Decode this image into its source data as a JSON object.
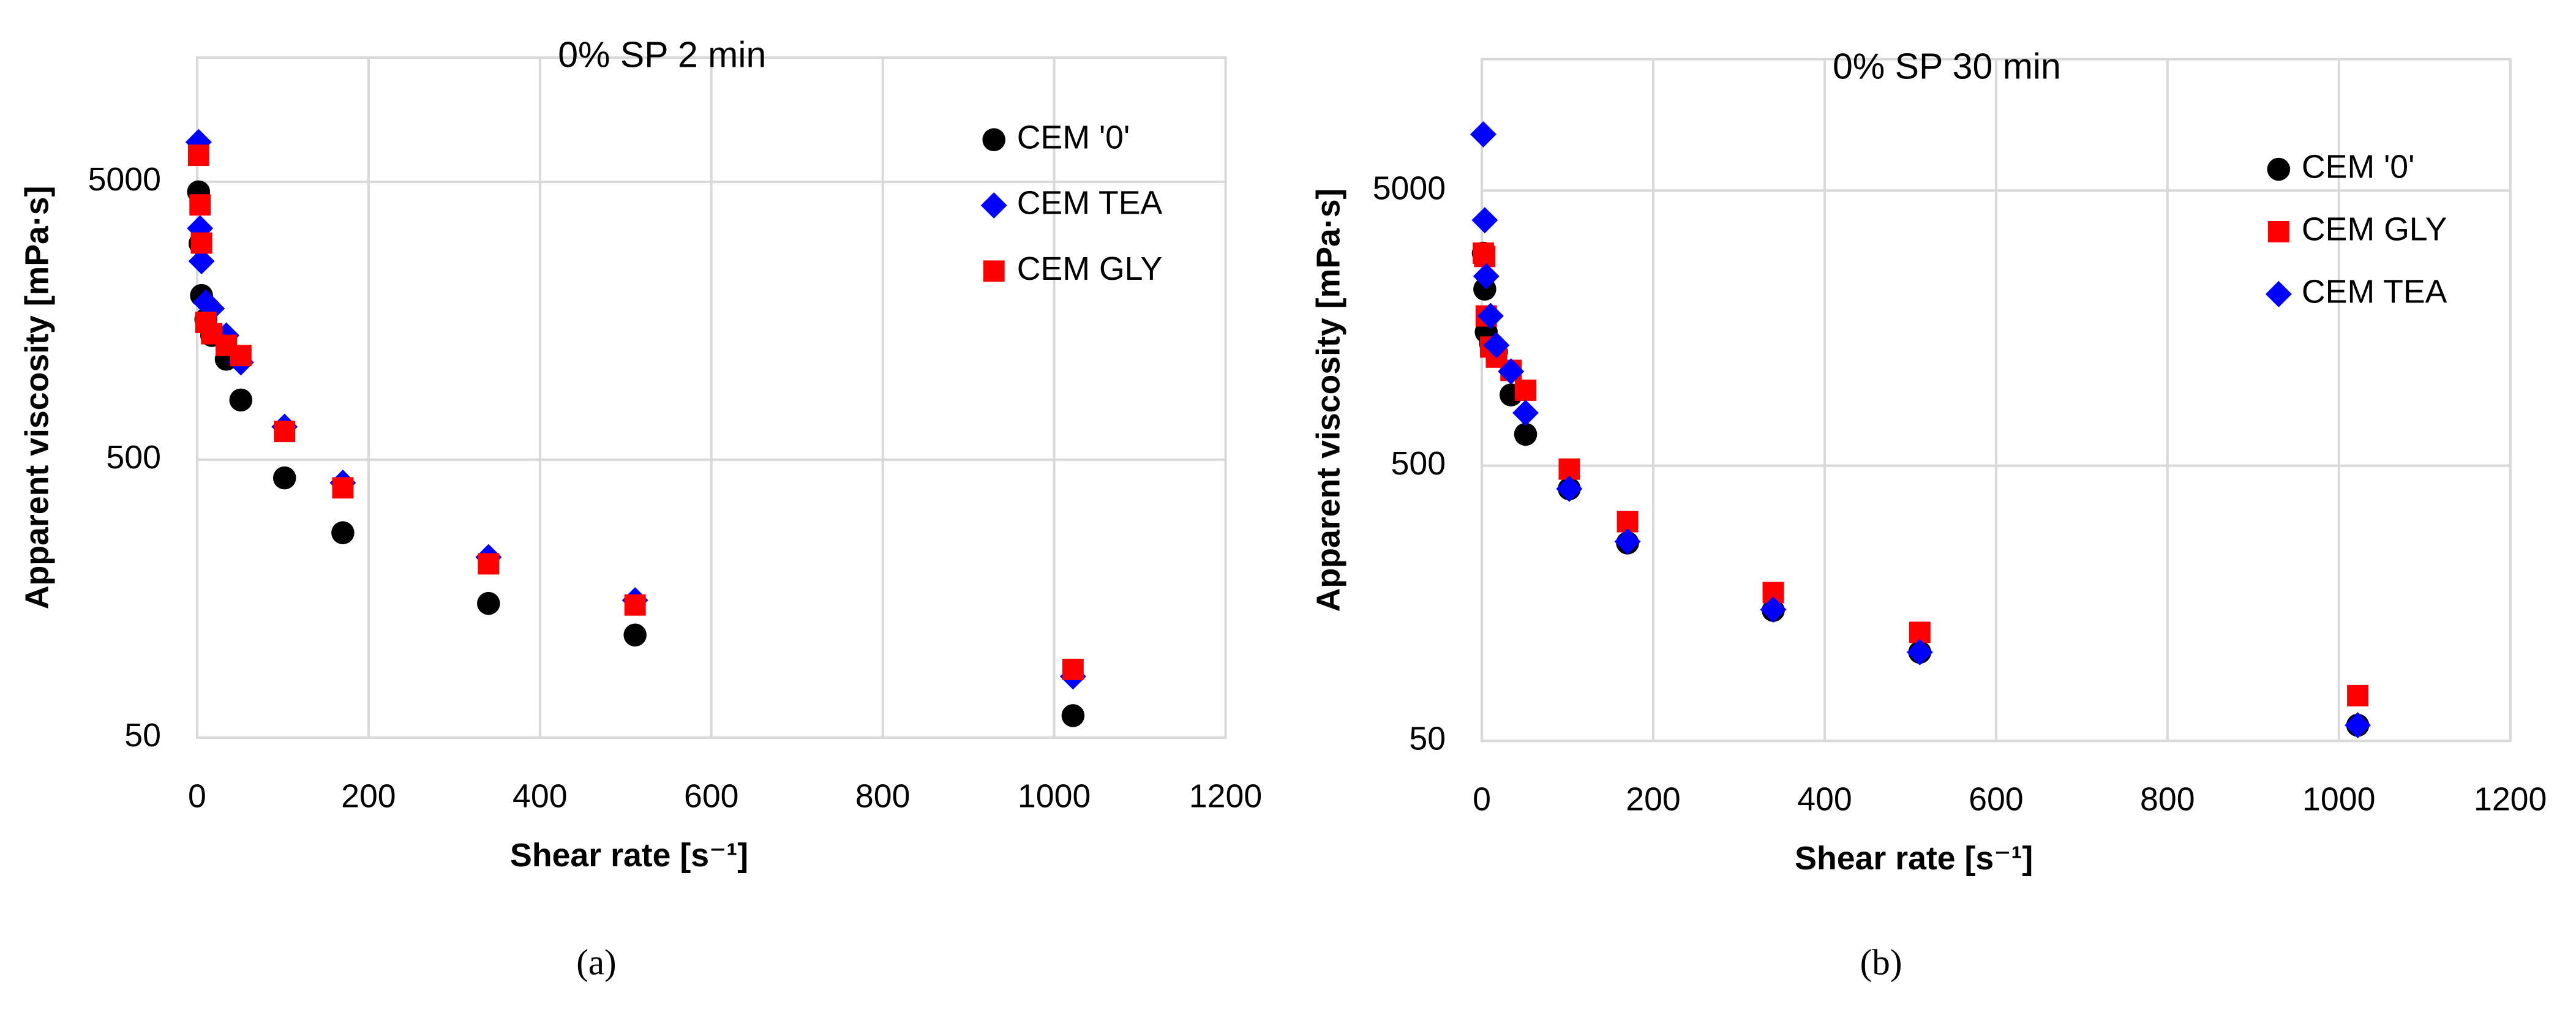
{
  "chart_data": [
    {
      "type": "scatter",
      "title": "0% SP 2 min",
      "caption": "(a)",
      "xlabel": "Shear rate [s⁻¹]",
      "ylabel": "Apparent viscosity [mPa·s]",
      "xlim": [
        0,
        1200
      ],
      "xticks": [
        0,
        200,
        400,
        600,
        800,
        1000,
        1200
      ],
      "ylim": [
        50,
        14000
      ],
      "yticks": [
        50,
        500,
        5000
      ],
      "log_y": true,
      "grid": true,
      "legend": "upper right",
      "series": [
        {
          "name": "CEM '0'",
          "color": "#000000",
          "marker": "circle",
          "x": [
            1.7,
            3.4,
            5.1,
            10.2,
            17,
            34,
            51,
            102,
            170,
            340,
            511,
            1022
          ],
          "values": [
            4600,
            3000,
            1950,
            1600,
            1400,
            1150,
            820,
            430,
            273,
            152,
            117,
            60
          ]
        },
        {
          "name": "CEM TEA",
          "color": "#0000ff",
          "marker": "diamond",
          "x": [
            1.7,
            3.4,
            5.1,
            10.2,
            17,
            34,
            51,
            102,
            170,
            340,
            511,
            1022
          ],
          "values": [
            6950,
            3400,
            2590,
            1840,
            1750,
            1400,
            1120,
            657,
            413,
            223,
            156,
            83
          ]
        },
        {
          "name": "CEM GLY",
          "color": "#ff0000",
          "marker": "square",
          "x": [
            1.7,
            3.4,
            5.1,
            10.2,
            17,
            34,
            51,
            102,
            170,
            340,
            511,
            1022
          ],
          "values": [
            6230,
            4130,
            3010,
            1560,
            1420,
            1290,
            1185,
            632,
            396,
            211,
            150,
            88
          ]
        }
      ]
    },
    {
      "type": "scatter",
      "title": "0% SP 30 min",
      "caption": "(b)",
      "xlabel": "Shear rate [s⁻¹]",
      "ylabel": "Apparent viscosity [mPa·s]",
      "xlim": [
        0,
        1200
      ],
      "xticks": [
        0,
        200,
        400,
        600,
        800,
        1000,
        1200
      ],
      "ylim": [
        50,
        15000
      ],
      "yticks": [
        50,
        500,
        5000
      ],
      "log_y": true,
      "grid": true,
      "legend": "upper right",
      "series": [
        {
          "name": "CEM '0'",
          "color": "#000000",
          "marker": "circle",
          "x": [
            1.7,
            3.4,
            5.1,
            10.2,
            17,
            34,
            51,
            102,
            170,
            340,
            511,
            1022
          ],
          "values": [
            2960,
            2190,
            1530,
            1390,
            1295,
            904,
            650,
            412,
            262,
            149,
            105,
            57
          ]
        },
        {
          "name": "CEM GLY",
          "color": "#ff0000",
          "marker": "square",
          "x": [
            1.7,
            3.4,
            5.1,
            10.2,
            17,
            34,
            51,
            102,
            170,
            340,
            511,
            1022
          ],
          "values": [
            2960,
            2880,
            1750,
            1350,
            1240,
            1110,
            940,
            486,
            313,
            173,
            124,
            73
          ]
        },
        {
          "name": "CEM TEA",
          "color": "#0000ff",
          "marker": "diamond",
          "x": [
            1.7,
            3.4,
            5.1,
            10.2,
            17,
            34,
            51,
            102,
            170,
            340,
            511,
            1022
          ],
          "values": [
            8000,
            3900,
            2440,
            1750,
            1370,
            1100,
            778,
            412,
            265,
            150,
            105,
            57
          ]
        }
      ]
    }
  ]
}
